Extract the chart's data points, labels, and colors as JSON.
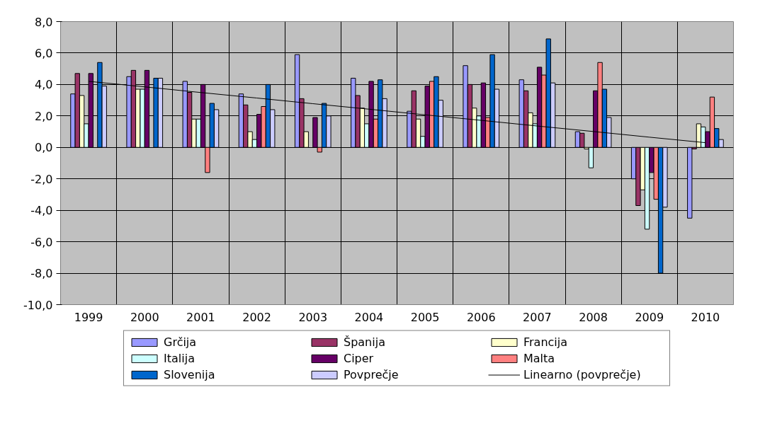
{
  "chart_data": {
    "type": "bar",
    "categories": [
      "1999",
      "2000",
      "2001",
      "2002",
      "2003",
      "2004",
      "2005",
      "2006",
      "2007",
      "2008",
      "2009",
      "2010"
    ],
    "ylim": [
      -10,
      8
    ],
    "yticks": [
      {
        "value": -10,
        "label": "-10,0"
      },
      {
        "value": -8,
        "label": "-8,0"
      },
      {
        "value": -6,
        "label": "-6,0"
      },
      {
        "value": -4,
        "label": "-4,0"
      },
      {
        "value": -2,
        "label": "-2,0"
      },
      {
        "value": 0,
        "label": "0,0"
      },
      {
        "value": 2,
        "label": "2,0"
      },
      {
        "value": 4,
        "label": "4,0"
      },
      {
        "value": 6,
        "label": "6,0"
      },
      {
        "value": 8,
        "label": "8,0"
      }
    ],
    "grid": true,
    "legend": "bottom",
    "series": [
      {
        "name": "Grčija",
        "color": "#9999ff",
        "values": [
          3.4,
          4.5,
          4.2,
          3.4,
          5.9,
          4.4,
          2.3,
          5.2,
          4.3,
          1.0,
          -2.0,
          -4.5
        ]
      },
      {
        "name": "Španija",
        "color": "#993366",
        "values": [
          4.7,
          4.9,
          3.5,
          2.7,
          3.1,
          3.3,
          3.6,
          4.0,
          3.6,
          0.9,
          -3.7,
          -0.1
        ]
      },
      {
        "name": "Francija",
        "color": "#ffffcc",
        "values": [
          3.3,
          3.7,
          1.8,
          1.0,
          1.0,
          2.5,
          1.8,
          2.5,
          2.2,
          -0.1,
          -2.7,
          1.5
        ]
      },
      {
        "name": "Italija",
        "color": "#ccffff",
        "values": [
          1.5,
          3.7,
          1.8,
          0.5,
          null,
          1.5,
          0.7,
          2.0,
          1.5,
          -1.3,
          -5.2,
          1.3
        ]
      },
      {
        "name": "Ciper",
        "color": "#660066",
        "values": [
          4.7,
          4.9,
          4.0,
          2.1,
          1.9,
          4.2,
          3.9,
          4.1,
          5.1,
          3.6,
          -1.6,
          1.0
        ]
      },
      {
        "name": "Malta",
        "color": "#ff8080",
        "values": [
          null,
          null,
          -1.6,
          2.6,
          -0.3,
          1.8,
          4.2,
          1.9,
          4.6,
          5.4,
          -3.3,
          3.2
        ]
      },
      {
        "name": "Slovenija",
        "color": "#0066cc",
        "values": [
          5.4,
          4.4,
          2.8,
          4.0,
          2.8,
          4.3,
          4.5,
          5.9,
          6.9,
          3.7,
          -8.0,
          1.2
        ]
      },
      {
        "name": "Povprečje",
        "color": "#ccccff",
        "values": [
          3.9,
          4.4,
          2.4,
          2.4,
          2.0,
          3.1,
          3.0,
          3.7,
          4.1,
          1.9,
          -3.8,
          0.5
        ]
      },
      {
        "name": "Linearno (povprečje)",
        "type": "line",
        "color": "#000000",
        "values": [
          4.2,
          3.85,
          3.49,
          3.14,
          2.78,
          2.43,
          2.07,
          1.72,
          1.36,
          1.01,
          0.65,
          0.3
        ]
      }
    ]
  }
}
